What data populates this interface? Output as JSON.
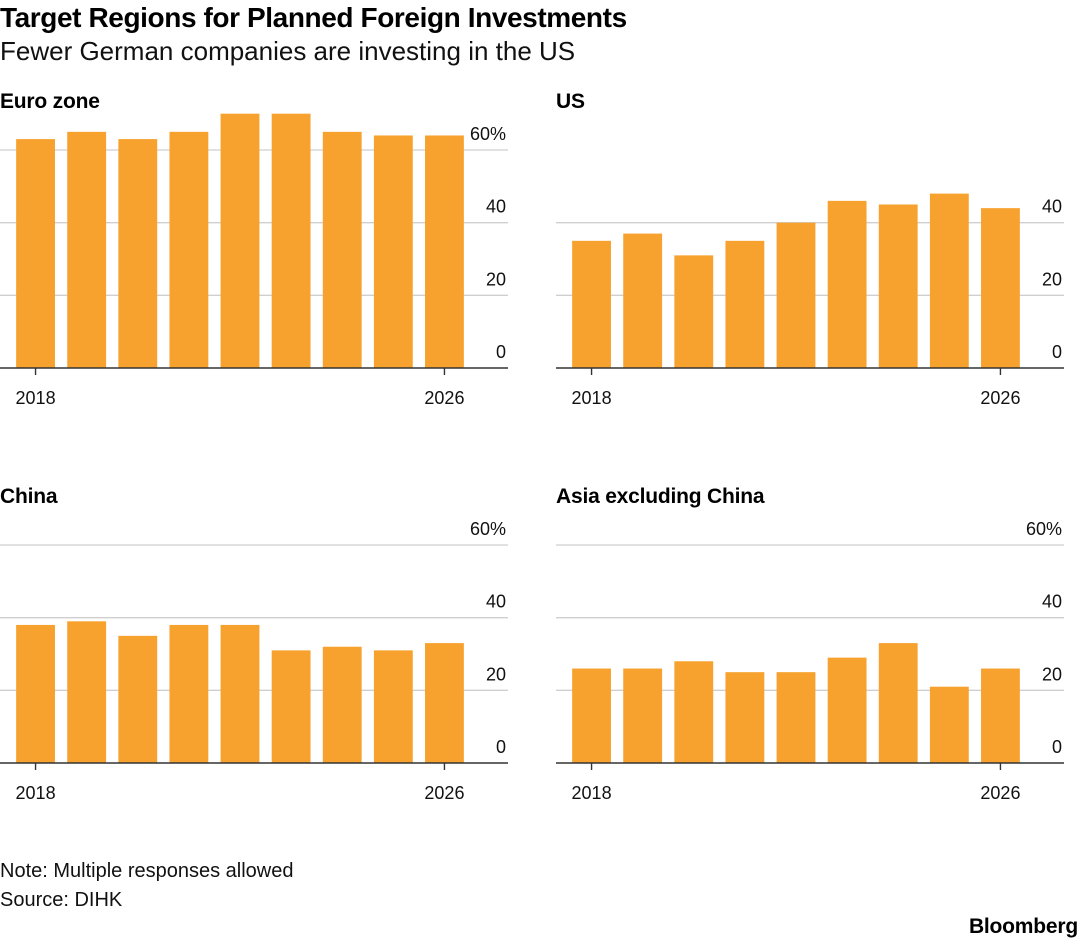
{
  "header": {
    "title": "Target Regions for Planned Foreign Investments",
    "subtitle": "Fewer German companies are investing in the US"
  },
  "chart_data": [
    {
      "type": "bar",
      "title": "Euro zone",
      "categories": [
        "2018",
        "2019",
        "2020",
        "2021",
        "2022",
        "2023",
        "2024",
        "2025",
        "2026"
      ],
      "x_tick_labels": [
        "2018",
        "2026"
      ],
      "values": [
        63,
        65,
        63,
        65,
        70,
        70,
        65,
        64,
        64
      ],
      "ylim": [
        0,
        60
      ],
      "y_ticks": [
        "0",
        "20",
        "40",
        "60%"
      ],
      "grid": true,
      "color": "#f7a22e"
    },
    {
      "type": "bar",
      "title": "US",
      "categories": [
        "2018",
        "2019",
        "2020",
        "2021",
        "2022",
        "2023",
        "2024",
        "2025",
        "2026"
      ],
      "x_tick_labels": [
        "2018",
        "2026"
      ],
      "values": [
        35,
        37,
        31,
        35,
        40,
        46,
        45,
        48,
        44
      ],
      "ylim": [
        0,
        60
      ],
      "y_ticks": [
        "0",
        "20",
        "40"
      ],
      "grid": true,
      "color": "#f7a22e"
    },
    {
      "type": "bar",
      "title": "China",
      "categories": [
        "2018",
        "2019",
        "2020",
        "2021",
        "2022",
        "2023",
        "2024",
        "2025",
        "2026"
      ],
      "x_tick_labels": [
        "2018",
        "2026"
      ],
      "values": [
        38,
        39,
        35,
        38,
        38,
        31,
        32,
        31,
        33
      ],
      "ylim": [
        0,
        60
      ],
      "y_ticks": [
        "0",
        "20",
        "40",
        "60%"
      ],
      "grid": true,
      "color": "#f7a22e"
    },
    {
      "type": "bar",
      "title": "Asia excluding China",
      "categories": [
        "2018",
        "2019",
        "2020",
        "2021",
        "2022",
        "2023",
        "2024",
        "2025",
        "2026"
      ],
      "x_tick_labels": [
        "2018",
        "2026"
      ],
      "values": [
        26,
        26,
        28,
        25,
        25,
        29,
        33,
        21,
        26
      ],
      "ylim": [
        0,
        60
      ],
      "y_ticks": [
        "0",
        "20",
        "40",
        "60%"
      ],
      "grid": true,
      "color": "#f7a22e"
    }
  ],
  "footer": {
    "note": "Note: Multiple responses allowed",
    "source": "Source: DIHK",
    "brand": "Bloomberg"
  }
}
